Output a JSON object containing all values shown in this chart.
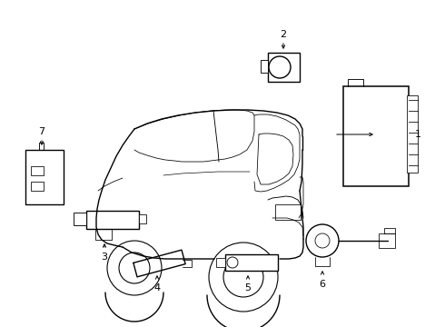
{
  "background_color": "#ffffff",
  "line_color": "#000000",
  "line_width": 0.8,
  "fig_width": 4.9,
  "fig_height": 3.6,
  "dpi": 100
}
